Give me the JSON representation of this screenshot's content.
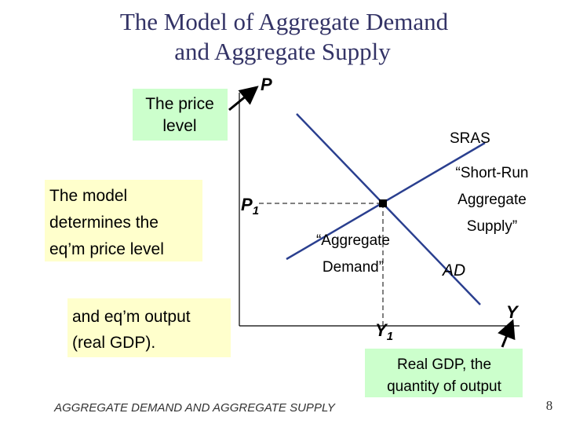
{
  "title": {
    "line1": "The Model of Aggregate Demand",
    "line2": "and Aggregate Supply"
  },
  "boxes": {
    "price_level": {
      "line1": "The price",
      "line2": "level"
    },
    "model": {
      "line1": "The model",
      "line2": "determines the",
      "line3": "eq’m price level"
    },
    "output": {
      "line1": "and eq’m output",
      "line2": "(real GDP)."
    },
    "real_gdp": {
      "line1": "Real GDP, the",
      "line2": "quantity of output"
    }
  },
  "axes": {
    "y_label": "P",
    "x_label": "Y",
    "p1": {
      "main": "P",
      "sub": "1"
    },
    "y1": {
      "main": "Y",
      "sub": "1"
    }
  },
  "curves": {
    "sras": {
      "label": "SRAS",
      "line1": "“Short-Run",
      "line2": "Aggregate",
      "line3": "Supply”"
    },
    "ad": {
      "label": "AD",
      "line1": "“Aggregate",
      "line2": "Demand”"
    }
  },
  "footer": "AGGREGATE DEMAND AND AGGREGATE SUPPLY",
  "page_number": "8"
}
